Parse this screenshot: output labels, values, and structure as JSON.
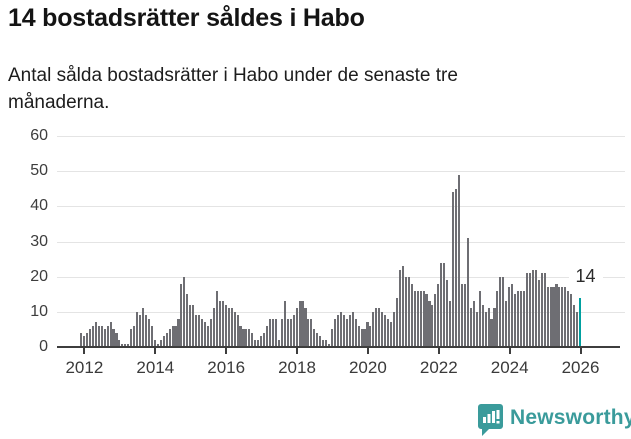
{
  "header": {
    "title": "14 bostadsrätter såldes i Habo",
    "subtitle_line1": "Antal sålda bostadsrätter i Habo under de senaste tre",
    "subtitle_line2": "månaderna."
  },
  "chart_data": {
    "type": "bar",
    "title": "14 bostadsrätter såldes i Habo",
    "subtitle": "Antal sålda bostadsrätter i Habo under de senaste tre månaderna.",
    "ylabel": "",
    "xlabel": "",
    "ylim": [
      0,
      60
    ],
    "yticks": [
      0,
      10,
      20,
      30,
      40,
      50,
      60
    ],
    "grid": "horizontal",
    "start_month": "2011-12",
    "end_month": "2026-01",
    "values": [
      4,
      3,
      4,
      5,
      6,
      7,
      6,
      6,
      5,
      6,
      7,
      5,
      4,
      2,
      1,
      1,
      1,
      5,
      6,
      10,
      9,
      11,
      9,
      8,
      6,
      2,
      1,
      2,
      3,
      4,
      5,
      6,
      6,
      8,
      18,
      20,
      15,
      12,
      12,
      9,
      9,
      8,
      7,
      6,
      8,
      11,
      16,
      13,
      13,
      12,
      11,
      11,
      10,
      9,
      6,
      5,
      5,
      5,
      4,
      2,
      2,
      3,
      4,
      6,
      8,
      8,
      8,
      2,
      8,
      13,
      8,
      8,
      9,
      11,
      13,
      13,
      11,
      8,
      8,
      5,
      4,
      3,
      2,
      2,
      1,
      5,
      8,
      9,
      10,
      9,
      8,
      9,
      10,
      8,
      6,
      5,
      5,
      7,
      6,
      10,
      11,
      11,
      10,
      9,
      8,
      7,
      10,
      14,
      22,
      23,
      20,
      20,
      18,
      16,
      16,
      16,
      16,
      15,
      13,
      12,
      15,
      18,
      24,
      24,
      19,
      13,
      44,
      45,
      49,
      18,
      18,
      31,
      11,
      13,
      10,
      16,
      12,
      10,
      11,
      8,
      11,
      16,
      20,
      20,
      13,
      17,
      18,
      15,
      16,
      16,
      16,
      21,
      21,
      22,
      22,
      19,
      21,
      21,
      17,
      17,
      17,
      18,
      17,
      17,
      17,
      16,
      15,
      12,
      10,
      14
    ],
    "ticks": [
      {
        "label": "2012",
        "index": 1
      },
      {
        "label": "2014",
        "index": 25
      },
      {
        "label": "2016",
        "index": 49
      },
      {
        "label": "2018",
        "index": 73
      },
      {
        "label": "2020",
        "index": 97
      },
      {
        "label": "2022",
        "index": 121
      },
      {
        "label": "2024",
        "index": 145
      },
      {
        "label": "2026",
        "index": 169
      }
    ],
    "bar_color": "#6e6e73",
    "highlight_last": true,
    "highlight_color": "#00a0a0",
    "annotation": {
      "text": "14",
      "value": 14
    }
  },
  "footer": {
    "brand": "Newsworthy",
    "brand_color": "#3a9b9b"
  }
}
